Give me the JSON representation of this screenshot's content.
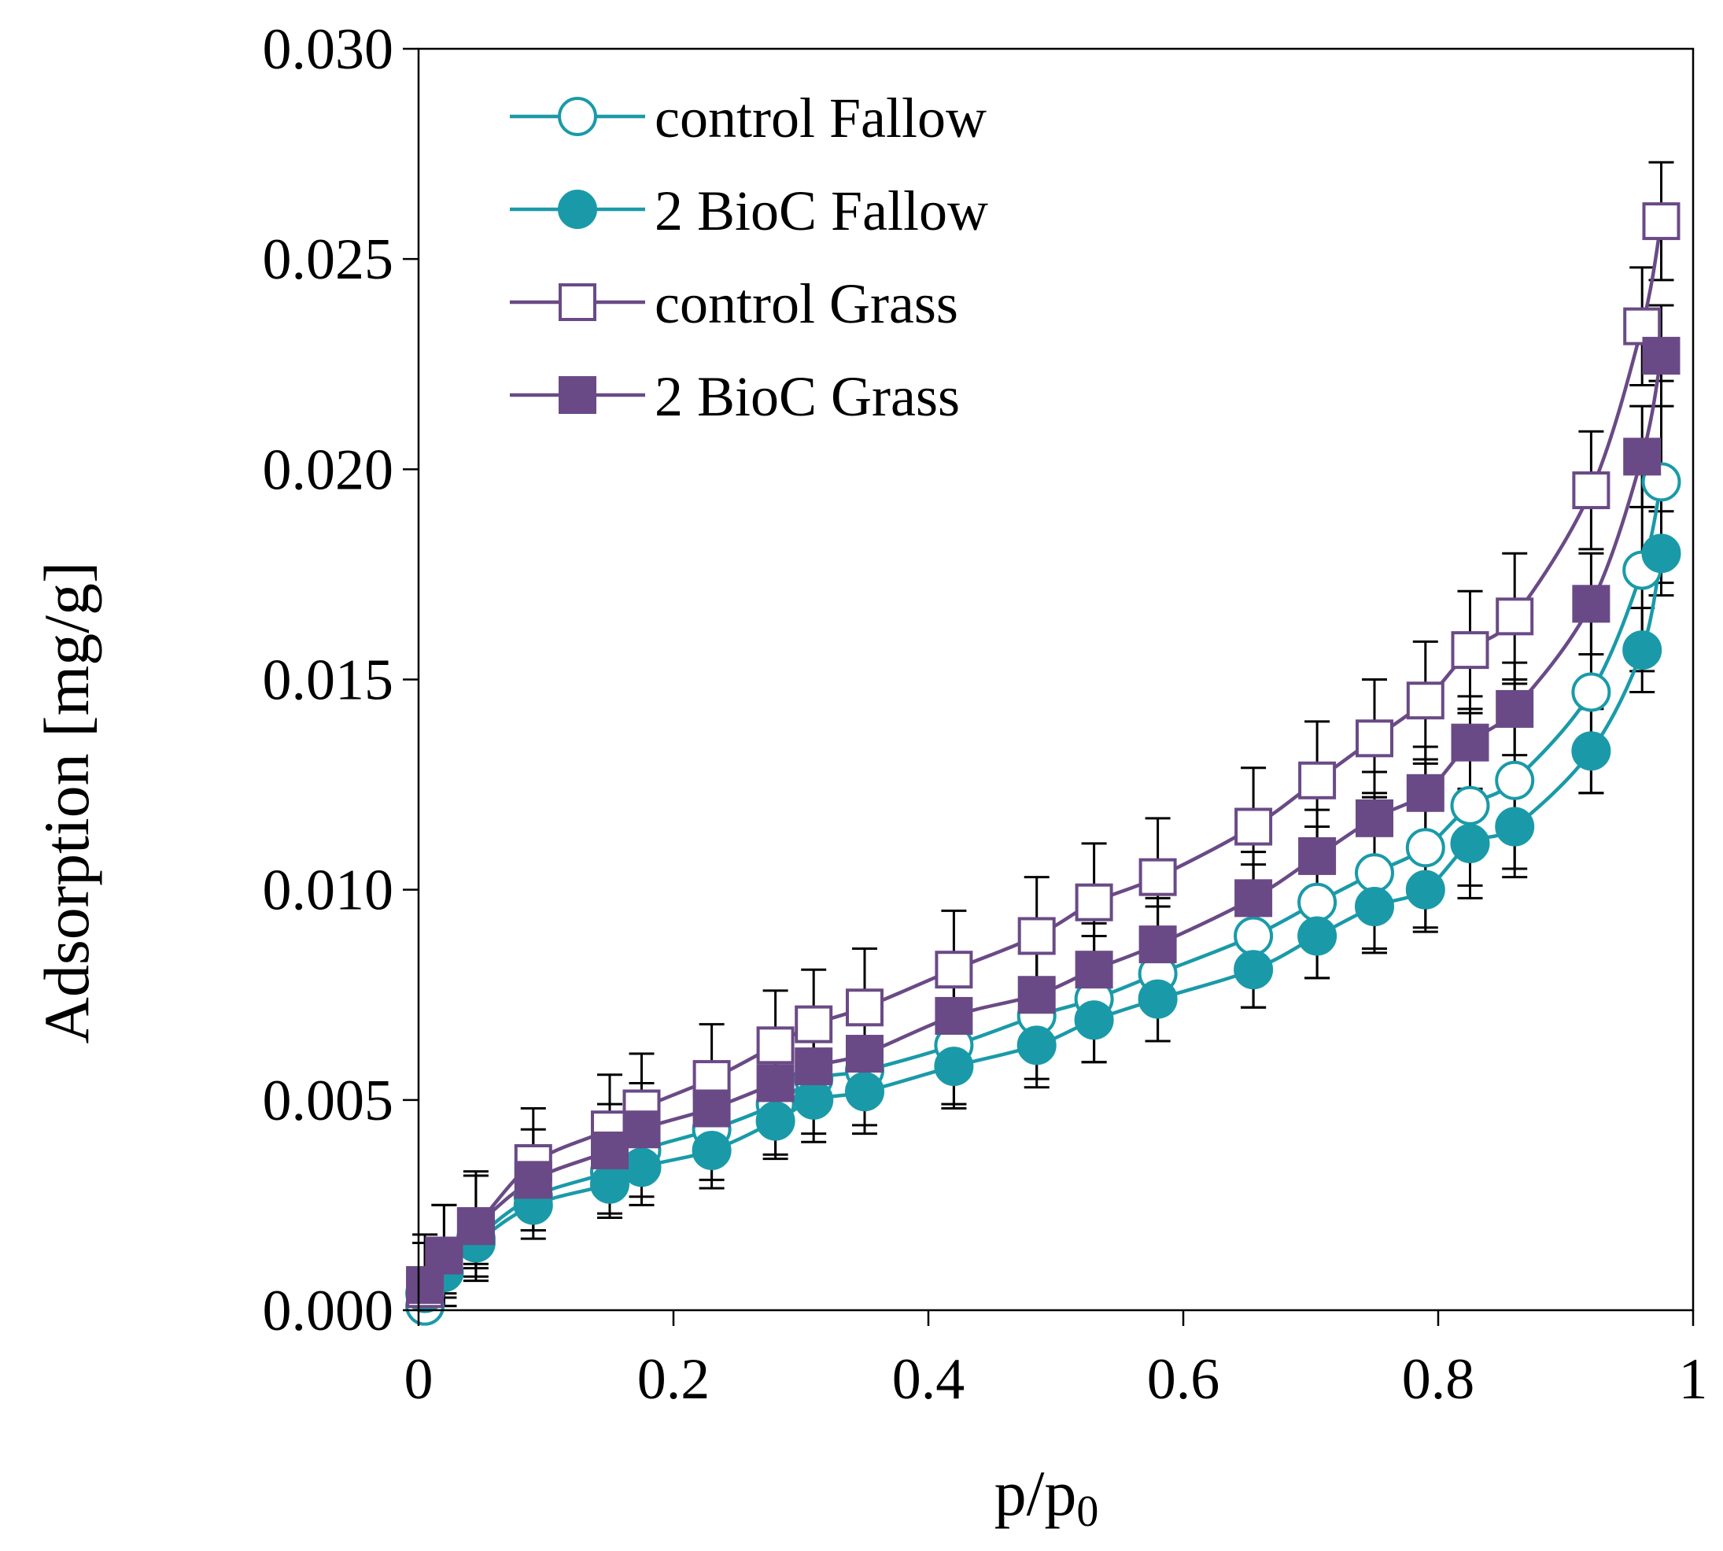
{
  "chart_data": {
    "type": "line",
    "title": "",
    "xlabel": "p/p",
    "xlabel_subscript": "0",
    "ylabel": "Adsorption [mg/g]",
    "xlim": [
      0,
      1
    ],
    "ylim": [
      0,
      0.03
    ],
    "x_ticks": [
      0,
      0.2,
      0.4,
      0.6,
      0.8,
      1
    ],
    "x_tick_labels": [
      "0",
      "0.2",
      "0.4",
      "0.6",
      "0.8",
      "1"
    ],
    "y_ticks": [
      0,
      0.005,
      0.01,
      0.015,
      0.02,
      0.025,
      0.03
    ],
    "y_tick_labels": [
      "0.000",
      "0.005",
      "0.010",
      "0.015",
      "0.020",
      "0.025",
      "0.030"
    ],
    "grid": false,
    "legend_position": "top-left",
    "x": [
      0.005,
      0.02,
      0.045,
      0.09,
      0.15,
      0.175,
      0.23,
      0.28,
      0.31,
      0.35,
      0.42,
      0.485,
      0.53,
      0.58,
      0.655,
      0.705,
      0.75,
      0.79,
      0.825,
      0.86,
      0.92,
      0.96,
      0.975
    ],
    "series": [
      {
        "name": "control Fallow",
        "color": "#1a9aa8",
        "marker": "circle-open",
        "values": [
          0.0001,
          0.0009,
          0.0017,
          0.0027,
          0.0033,
          0.0038,
          0.0043,
          0.0049,
          0.0055,
          0.0057,
          0.0063,
          0.007,
          0.0074,
          0.008,
          0.0089,
          0.0097,
          0.0104,
          0.011,
          0.012,
          0.0126,
          0.0147,
          0.0176,
          0.0197
        ],
        "errors": [
          0.0004,
          0.0006,
          0.0006,
          0.0008,
          0.001,
          0.0011,
          0.0012,
          0.0012,
          0.0013,
          0.0013,
          0.0014,
          0.0015,
          0.0015,
          0.0016,
          0.0017,
          0.0018,
          0.0019,
          0.002,
          0.0022,
          0.0023,
          0.0024,
          0.0024,
          0.0024
        ]
      },
      {
        "name": "2 BioC Fallow",
        "color": "#1a9aa8",
        "marker": "circle-filled",
        "values": [
          0.0004,
          0.0009,
          0.0016,
          0.0025,
          0.003,
          0.0034,
          0.0038,
          0.0045,
          0.005,
          0.0052,
          0.0058,
          0.0063,
          0.0069,
          0.0074,
          0.0081,
          0.0089,
          0.0096,
          0.01,
          0.0111,
          0.0115,
          0.0133,
          0.0157,
          0.018
        ],
        "errors": [
          0.0003,
          0.0005,
          0.0006,
          0.0008,
          0.0008,
          0.0009,
          0.0009,
          0.0009,
          0.001,
          0.001,
          0.001,
          0.001,
          0.001,
          0.001,
          0.0009,
          0.001,
          0.001,
          0.0009,
          0.001,
          0.001,
          0.001,
          0.001,
          0.001
        ]
      },
      {
        "name": "control Grass",
        "color": "#6a4a86",
        "marker": "square-open",
        "values": [
          0.0005,
          0.0013,
          0.002,
          0.0035,
          0.0043,
          0.0048,
          0.0055,
          0.0063,
          0.0068,
          0.0072,
          0.0081,
          0.0089,
          0.0097,
          0.0103,
          0.0115,
          0.0126,
          0.0136,
          0.0145,
          0.0157,
          0.0165,
          0.0195,
          0.0234,
          0.0259
        ],
        "errors": [
          0.0011,
          0.0012,
          0.0013,
          0.0013,
          0.0013,
          0.0013,
          0.0013,
          0.0013,
          0.0013,
          0.0014,
          0.0014,
          0.0014,
          0.0014,
          0.0014,
          0.0014,
          0.0014,
          0.0014,
          0.0014,
          0.0014,
          0.0015,
          0.0014,
          0.0014,
          0.0014
        ]
      },
      {
        "name": "2 BioC Grass",
        "color": "#6a4a86",
        "marker": "square-filled",
        "values": [
          0.0006,
          0.0013,
          0.002,
          0.0031,
          0.0038,
          0.0043,
          0.0048,
          0.0054,
          0.0058,
          0.0061,
          0.007,
          0.0075,
          0.0081,
          0.0087,
          0.0098,
          0.0108,
          0.0117,
          0.0123,
          0.0135,
          0.0143,
          0.0168,
          0.0203,
          0.0227
        ],
        "errors": [
          0.0012,
          0.0012,
          0.0012,
          0.0012,
          0.0011,
          0.0011,
          0.0011,
          0.0011,
          0.0011,
          0.0011,
          0.0011,
          0.0011,
          0.0011,
          0.0011,
          0.0011,
          0.0011,
          0.0011,
          0.0011,
          0.0011,
          0.0011,
          0.0012,
          0.0012,
          0.0012
        ]
      }
    ]
  }
}
